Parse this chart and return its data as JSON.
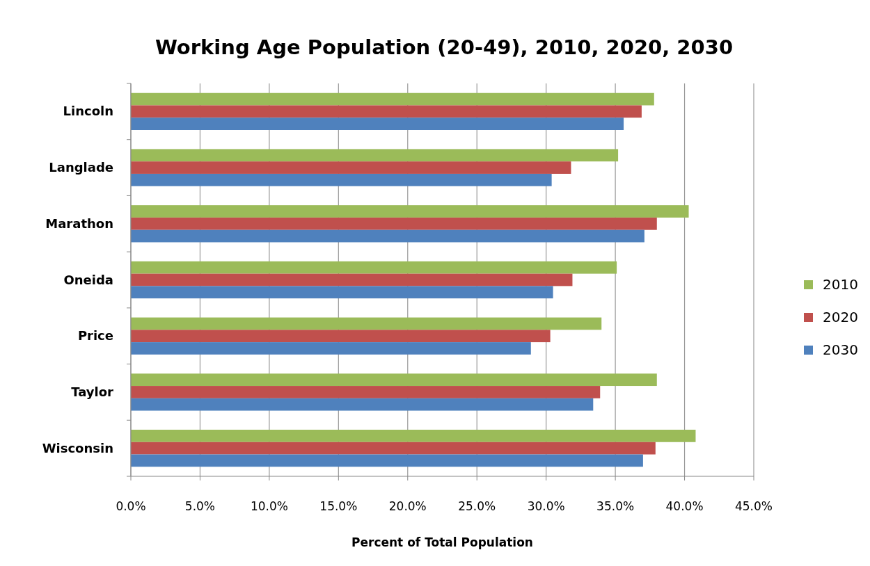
{
  "chart_data": {
    "type": "bar",
    "orientation": "horizontal",
    "title": "Working Age Population (20-49), 2010, 2020, 2030",
    "xlabel": "Percent of Total Population",
    "categories": [
      "Lincoln",
      "Langlade",
      "Marathon",
      "Oneida",
      "Price",
      "Taylor",
      "Wisconsin"
    ],
    "series": [
      {
        "name": "2010",
        "color": "#9bbb59",
        "values": [
          37.8,
          35.2,
          40.3,
          35.1,
          34.0,
          38.0,
          40.8
        ]
      },
      {
        "name": "2020",
        "color": "#c0504d",
        "values": [
          36.9,
          31.8,
          38.0,
          31.9,
          30.3,
          33.9,
          37.9
        ]
      },
      {
        "name": "2030",
        "color": "#4f81bd",
        "values": [
          35.6,
          30.4,
          37.1,
          30.5,
          28.9,
          33.4,
          37.0
        ]
      }
    ],
    "xlim": [
      0,
      45
    ],
    "xticks": [
      {
        "value": 0,
        "label": "0.0%"
      },
      {
        "value": 5,
        "label": "5.0%"
      },
      {
        "value": 10,
        "label": "10.0%"
      },
      {
        "value": 15,
        "label": "15.0%"
      },
      {
        "value": 20,
        "label": "20.0%"
      },
      {
        "value": 25,
        "label": "25.0%"
      },
      {
        "value": 30,
        "label": "30.0%"
      },
      {
        "value": 35,
        "label": "35.0%"
      },
      {
        "value": 40,
        "label": "40.0%"
      },
      {
        "value": 45,
        "label": "45.0%"
      }
    ],
    "grid": "x",
    "legend": "right"
  }
}
